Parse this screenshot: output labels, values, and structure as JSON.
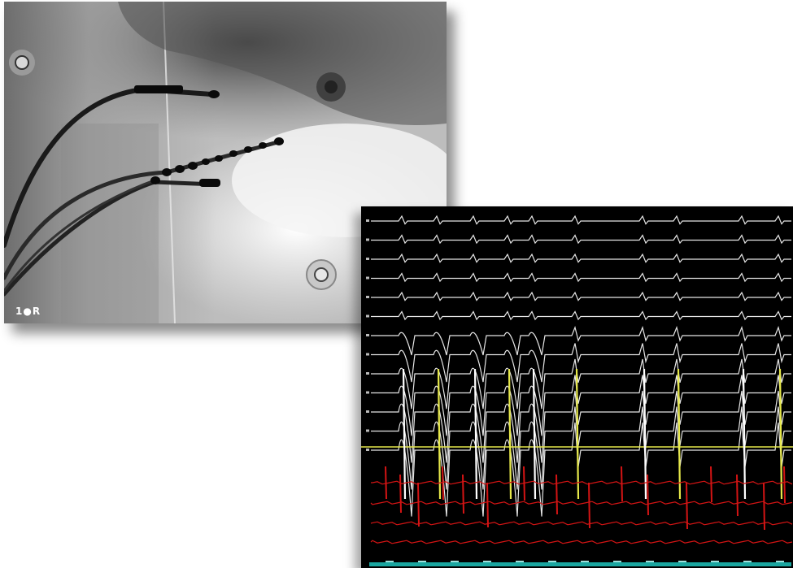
{
  "xray": {
    "label": "1●R"
  },
  "tracings": {
    "colors": {
      "surface": "#ffffff",
      "reference": "#e6e84a",
      "ablation": "#d41414",
      "time_bar": "#1aa6a0"
    }
  }
}
